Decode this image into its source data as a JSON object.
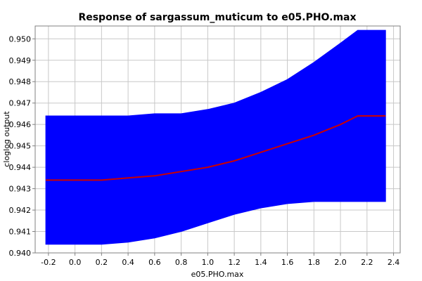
{
  "chart_data": {
    "type": "area",
    "title": "Response of sargassum_muticum to e05.PHO.max",
    "xlabel": "e05.PHO.max",
    "ylabel": "cloglog output",
    "xlim": [
      -0.3,
      2.45
    ],
    "ylim": [
      0.94,
      0.9506
    ],
    "x_ticks": [
      -0.2,
      0.0,
      0.2,
      0.4,
      0.6,
      0.8,
      1.0,
      1.2,
      1.4,
      1.6,
      1.8,
      2.0,
      2.2,
      2.4
    ],
    "y_ticks": [
      0.94,
      0.941,
      0.942,
      0.943,
      0.944,
      0.945,
      0.946,
      0.947,
      0.948,
      0.949,
      0.95
    ],
    "grid": true,
    "series": [
      {
        "role": "band",
        "color": "#0000ff",
        "x": [
          -0.22,
          0.0,
          0.2,
          0.4,
          0.6,
          0.8,
          1.0,
          1.2,
          1.4,
          1.6,
          1.8,
          2.0,
          2.13,
          2.34
        ],
        "upper": [
          0.9464,
          0.9464,
          0.9464,
          0.9464,
          0.9465,
          0.9465,
          0.9467,
          0.947,
          0.9475,
          0.9481,
          0.9489,
          0.9498,
          0.9504,
          0.9504
        ],
        "lower": [
          0.9404,
          0.9404,
          0.9404,
          0.9405,
          0.9407,
          0.941,
          0.9414,
          0.9418,
          0.9421,
          0.9423,
          0.9424,
          0.9424,
          0.9424,
          0.9424
        ]
      },
      {
        "role": "line",
        "color": "#cc0000",
        "x": [
          -0.22,
          0.0,
          0.2,
          0.4,
          0.6,
          0.8,
          1.0,
          1.2,
          1.4,
          1.6,
          1.8,
          2.0,
          2.13,
          2.34
        ],
        "values": [
          0.9434,
          0.9434,
          0.9434,
          0.9435,
          0.9436,
          0.9438,
          0.944,
          0.9443,
          0.9447,
          0.9451,
          0.9455,
          0.946,
          0.9464,
          0.9464
        ]
      }
    ]
  }
}
